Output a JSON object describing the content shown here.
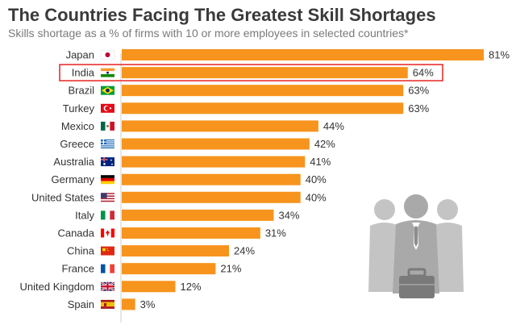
{
  "header": {
    "title": "The Countries Facing The Greatest Skill Shortages",
    "subtitle": "Skills shortage as a % of firms with 10 or more employees in selected countries*"
  },
  "colors": {
    "bar": "#F7941D",
    "highlight": "#E8312F",
    "people": "#B9B9B9",
    "briefcase": "#7A7A7A"
  },
  "decoration": {
    "icon": "businessmen-group-icon"
  },
  "chart_data": {
    "type": "bar",
    "orientation": "horizontal",
    "title": "The Countries Facing The Greatest Skill Shortages",
    "subtitle": "Skills shortage as a % of firms with 10 or more employees in selected countries*",
    "categories": [
      "Japan",
      "India",
      "Brazil",
      "Turkey",
      "Mexico",
      "Greece",
      "Australia",
      "Germany",
      "United States",
      "Italy",
      "Canada",
      "China",
      "France",
      "United Kingdom",
      "Spain"
    ],
    "values": [
      81,
      64,
      63,
      63,
      44,
      42,
      41,
      40,
      40,
      34,
      31,
      24,
      21,
      12,
      3
    ],
    "value_labels": [
      "81%",
      "64%",
      "63%",
      "63%",
      "44%",
      "42%",
      "41%",
      "40%",
      "40%",
      "34%",
      "31%",
      "24%",
      "21%",
      "12%",
      "3%"
    ],
    "flags": [
      "japan-flag-icon",
      "india-flag-icon",
      "brazil-flag-icon",
      "turkey-flag-icon",
      "mexico-flag-icon",
      "greece-flag-icon",
      "australia-flag-icon",
      "germany-flag-icon",
      "united-states-flag-icon",
      "italy-flag-icon",
      "canada-flag-icon",
      "china-flag-icon",
      "france-flag-icon",
      "united-kingdom-flag-icon",
      "spain-flag-icon"
    ],
    "highlighted": "India",
    "xlim": [
      0,
      81
    ],
    "grid": false,
    "legend": "none"
  }
}
